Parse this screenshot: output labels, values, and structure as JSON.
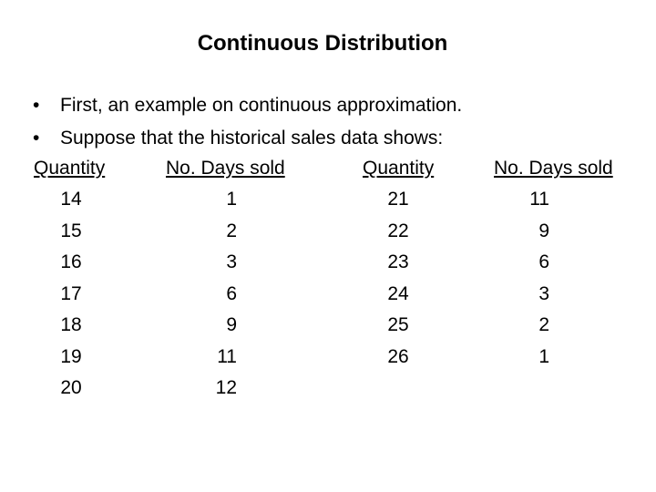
{
  "title": "Continuous Distribution",
  "bullets": [
    "First, an example on continuous approximation.",
    "Suppose that the historical sales data shows:"
  ],
  "bullet_glyph": "•",
  "table": {
    "headers": [
      "Quantity",
      "No. Days sold",
      "Quantity",
      "No. Days sold"
    ],
    "left_rows": [
      [
        "14",
        "1"
      ],
      [
        "15",
        "2"
      ],
      [
        "16",
        "3"
      ],
      [
        "17",
        "6"
      ],
      [
        "18",
        "9"
      ],
      [
        "19",
        "11"
      ],
      [
        "20",
        "12"
      ]
    ],
    "right_rows": [
      [
        "21",
        "11"
      ],
      [
        "22",
        "9"
      ],
      [
        "23",
        "6"
      ],
      [
        "24",
        "3"
      ],
      [
        "25",
        "2"
      ],
      [
        "26",
        "1"
      ]
    ]
  }
}
